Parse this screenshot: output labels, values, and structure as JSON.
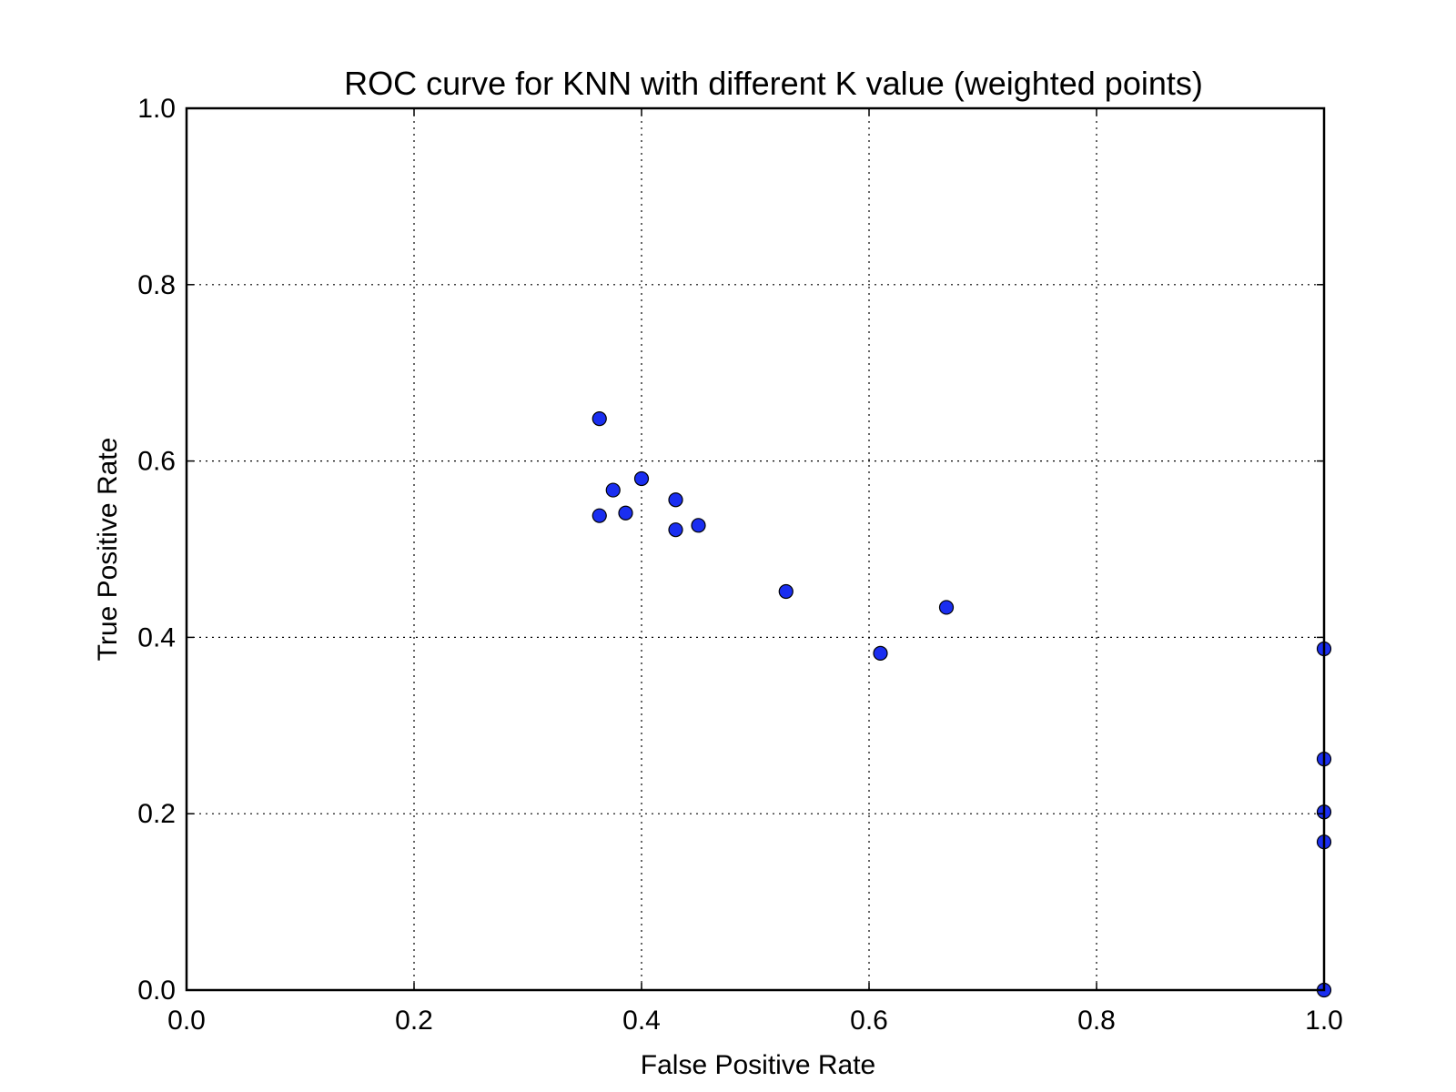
{
  "chart_data": {
    "type": "scatter",
    "title": "ROC curve for KNN with different K value (weighted points)",
    "xlabel": "False Positive Rate",
    "ylabel": "True Positive Rate",
    "xlim": [
      0.0,
      1.0
    ],
    "ylim": [
      0.0,
      1.0
    ],
    "xticks": [
      "0.0",
      "0.2",
      "0.4",
      "0.6",
      "0.8",
      "1.0"
    ],
    "yticks": [
      "0.0",
      "0.2",
      "0.4",
      "0.6",
      "0.8",
      "1.0"
    ],
    "grid": true,
    "marker_color": "#1a2ef0",
    "series": [
      {
        "x": [
          0.363,
          0.375,
          0.386,
          0.363,
          0.4,
          0.43,
          0.43,
          0.45,
          0.527,
          0.61,
          0.668,
          1.0,
          1.0,
          1.0,
          1.0,
          1.0
        ],
        "y": [
          0.648,
          0.567,
          0.541,
          0.538,
          0.58,
          0.556,
          0.522,
          0.527,
          0.452,
          0.382,
          0.434,
          0.387,
          0.262,
          0.202,
          0.168,
          0.0
        ]
      }
    ]
  }
}
